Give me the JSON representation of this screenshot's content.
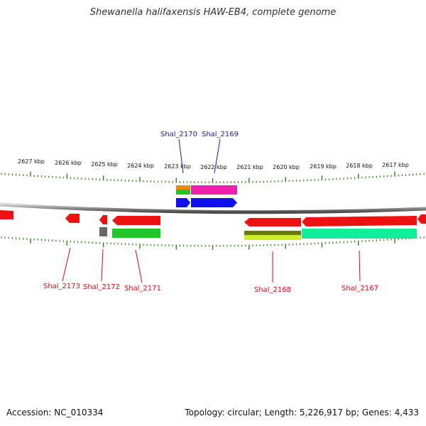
{
  "title": "Shewanella halifaxensis HAW-EB4, complete genome",
  "kbp_ticks": [
    "2627 kbp",
    "2626 kbp",
    "2625 kbp",
    "2624 kbp",
    "2623 kbp",
    "2622 kbp",
    "2621 kbp",
    "2620 kbp",
    "2619 kbp",
    "2618 kbp",
    "2617 kbp"
  ],
  "top_labels": [
    "Shal_2170",
    "Shal_2169"
  ],
  "bottom_labels": [
    "Shal_2173",
    "Shal_2172",
    "Shal_2171",
    "Shal_2168",
    "Shal_2167"
  ],
  "colors": {
    "backbone": "#8a8a8a",
    "tick": "#2e7d1a",
    "red": "#ee1111",
    "blue": "#1010ee",
    "pink": "#ee22aa",
    "orange": "#ee8800",
    "green": "#22c622",
    "teal": "#11ee99",
    "olive": "#6a7a10",
    "yellow": "#ccee22",
    "gray": "#666666",
    "top_label": "#1a1aa8",
    "bottom_label": "#cc1111"
  },
  "footer": {
    "accession": "Accession: NC_010334",
    "summary": "Topology: circular; Length: 5,226,917 bp; Genes: 4,433"
  }
}
